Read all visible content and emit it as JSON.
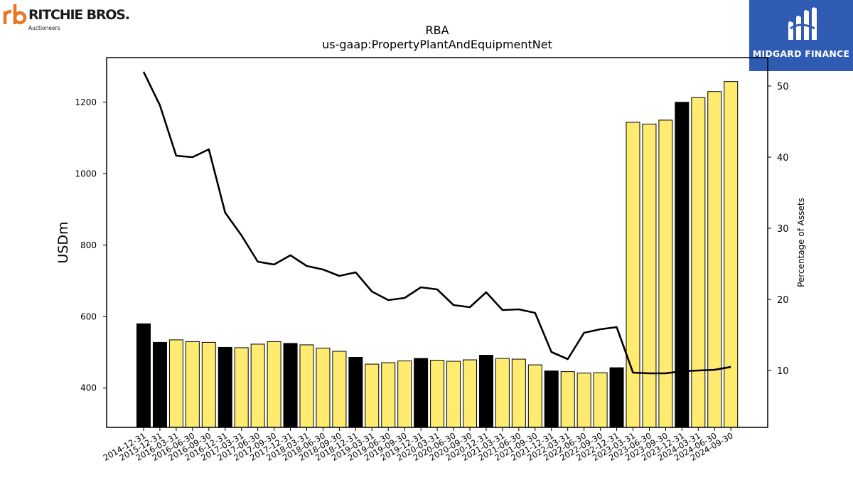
{
  "logos": {
    "left": {
      "name": "RITCHIE BROS.",
      "sub": "Auctioneers",
      "mark": "rb",
      "color": "#e87722"
    },
    "right": {
      "name": "MIDGARD FINANCE",
      "background": "#2f5bb3"
    }
  },
  "chart_data": {
    "type": "bar",
    "title": "RBA",
    "subtitle": "us-gaap:PropertyPlantAndEquipmentNet",
    "ylabel": "USDm",
    "y2label": "Percentage of Assets",
    "ylim": [
      290,
      1325
    ],
    "y2lim": [
      2,
      54
    ],
    "yticks": [
      400,
      600,
      800,
      1000,
      1200
    ],
    "y2ticks": [
      10,
      20,
      30,
      40,
      50
    ],
    "colors": {
      "annual": "#000000",
      "quarterly": "#ffeb70",
      "line": "#000000"
    },
    "categories": [
      "2014-12-31",
      "2015-12-31",
      "2016-03-31",
      "2016-06-30",
      "2016-09-30",
      "2016-12-31",
      "2017-03-31",
      "2017-06-30",
      "2017-09-30",
      "2017-12-31",
      "2018-03-31",
      "2018-06-30",
      "2018-09-30",
      "2018-12-31",
      "2019-03-31",
      "2019-06-30",
      "2019-09-30",
      "2019-12-31",
      "2020-03-31",
      "2020-06-30",
      "2020-09-30",
      "2020-12-31",
      "2021-03-31",
      "2021-06-30",
      "2021-09-30",
      "2021-12-31",
      "2022-03-31",
      "2022-06-30",
      "2022-09-30",
      "2022-12-31",
      "2023-03-31",
      "2023-06-30",
      "2023-09-30",
      "2023-12-31",
      "2024-03-31",
      "2024-06-30",
      "2024-09-30"
    ],
    "series": [
      {
        "kind": "bar",
        "values": [
          580,
          528,
          535,
          530,
          528,
          514,
          513,
          523,
          530,
          525,
          521,
          512,
          503,
          486,
          467,
          471,
          476,
          483,
          478,
          475,
          479,
          492,
          483,
          481,
          465,
          448,
          446,
          442,
          443,
          457,
          1144,
          1139,
          1150,
          1200,
          1213,
          1230,
          1258
        ],
        "period": [
          "annual",
          "annual",
          "quarterly",
          "quarterly",
          "quarterly",
          "annual",
          "quarterly",
          "quarterly",
          "quarterly",
          "annual",
          "quarterly",
          "quarterly",
          "quarterly",
          "annual",
          "quarterly",
          "quarterly",
          "quarterly",
          "annual",
          "quarterly",
          "quarterly",
          "quarterly",
          "annual",
          "quarterly",
          "quarterly",
          "quarterly",
          "annual",
          "quarterly",
          "quarterly",
          "quarterly",
          "annual",
          "quarterly",
          "quarterly",
          "quarterly",
          "annual",
          "quarterly",
          "quarterly",
          "quarterly"
        ]
      },
      {
        "kind": "line",
        "axis": "right",
        "values": [
          52,
          47.3,
          40.2,
          40.0,
          41.1,
          32.2,
          29.0,
          25.3,
          24.9,
          26.2,
          24.7,
          24.2,
          23.3,
          23.8,
          21.1,
          19.9,
          20.2,
          21.7,
          21.4,
          19.2,
          18.9,
          21.0,
          18.5,
          18.6,
          18.1,
          12.6,
          11.6,
          15.3,
          15.8,
          16.1,
          9.7,
          9.6,
          9.6,
          9.9,
          10.0,
          10.1,
          10.5
        ]
      }
    ]
  }
}
